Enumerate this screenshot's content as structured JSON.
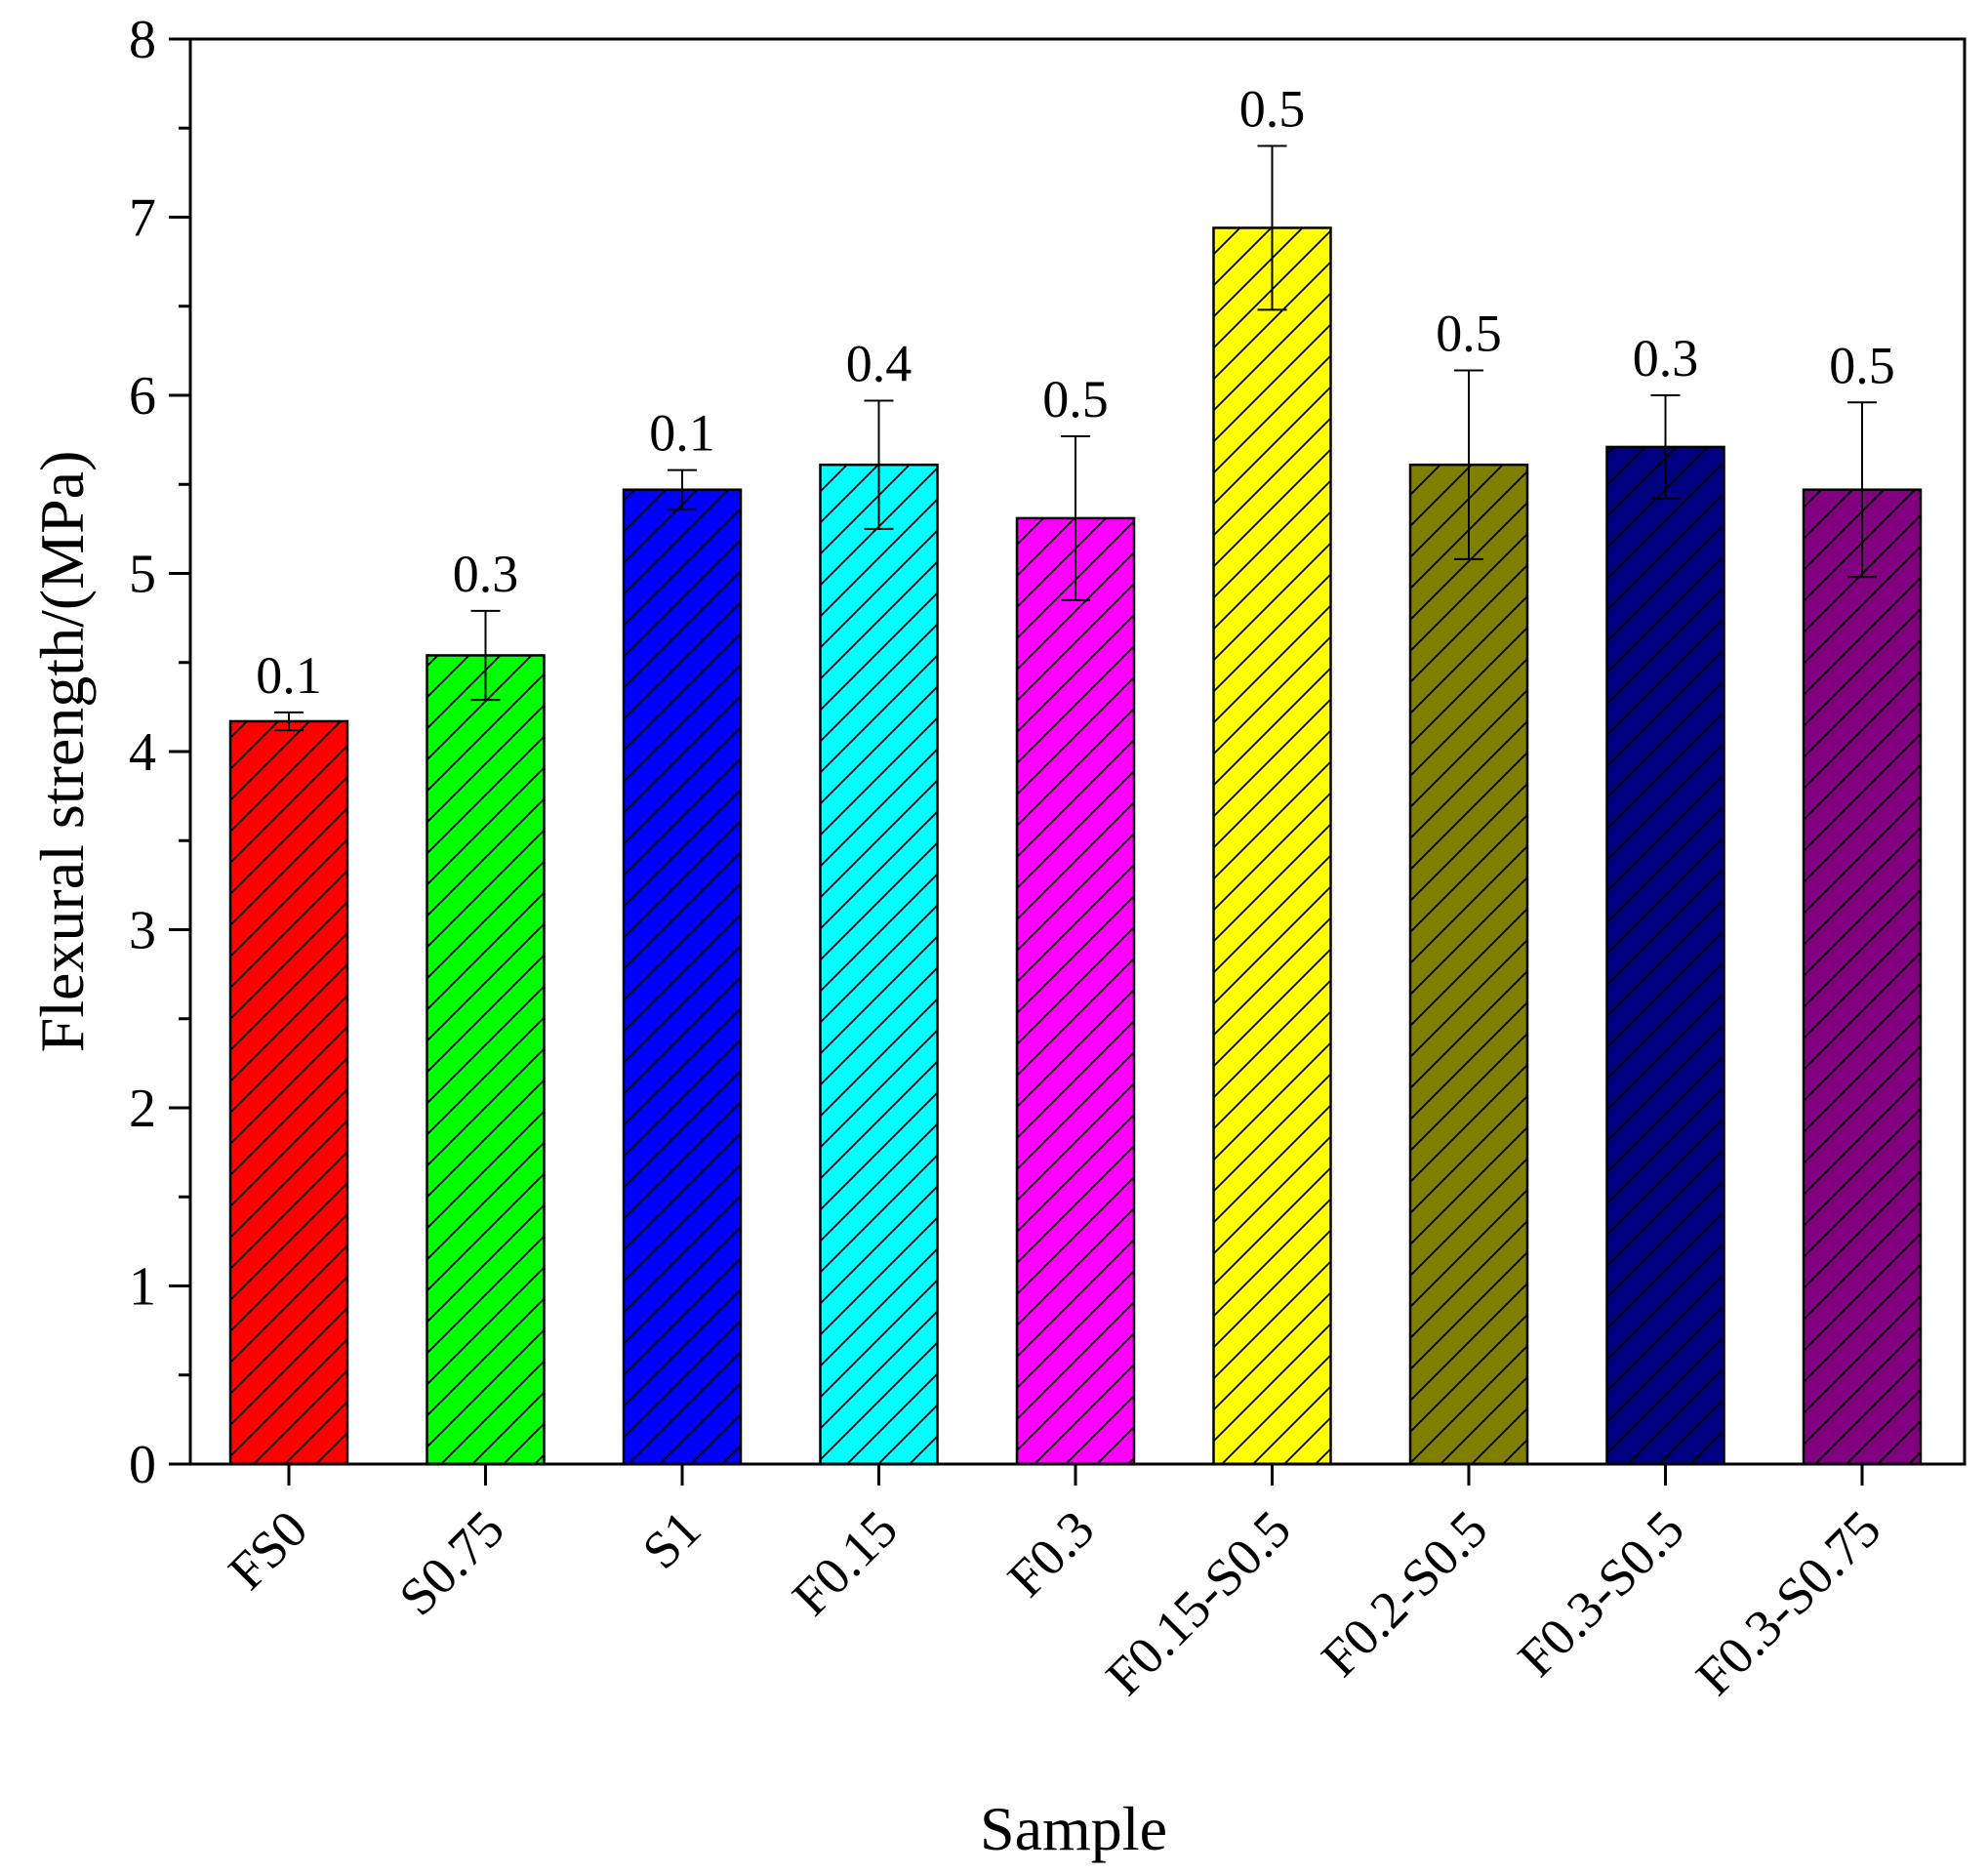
{
  "chart_data": {
    "type": "bar",
    "title": "",
    "xlabel": "Sample",
    "ylabel": "Flexural strength/(MPa)",
    "ylim": [
      0,
      8
    ],
    "yticks": [
      0,
      1,
      2,
      3,
      4,
      5,
      6,
      7,
      8
    ],
    "grid": false,
    "bar_pattern": "diagonal-hatch",
    "categories": [
      "FS0",
      "S0.75",
      "S1",
      "F0.15",
      "F0.3",
      "F0.15-S0.5",
      "F0.2-S0.5",
      "F0.3-S0.5",
      "F0.3-S0.75"
    ],
    "values": [
      4.17,
      4.54,
      5.47,
      5.61,
      5.31,
      6.94,
      5.61,
      5.71,
      5.47
    ],
    "errors": [
      0.05,
      0.25,
      0.11,
      0.36,
      0.46,
      0.46,
      0.53,
      0.29,
      0.49
    ],
    "error_labels": [
      "0.1",
      "0.3",
      "0.1",
      "0.4",
      "0.5",
      "0.5",
      "0.5",
      "0.3",
      "0.5"
    ],
    "colors": [
      "#ff0000",
      "#00ff00",
      "#0000ff",
      "#00ffff",
      "#ff00ff",
      "#ffff00",
      "#808000",
      "#000080",
      "#800080"
    ]
  }
}
